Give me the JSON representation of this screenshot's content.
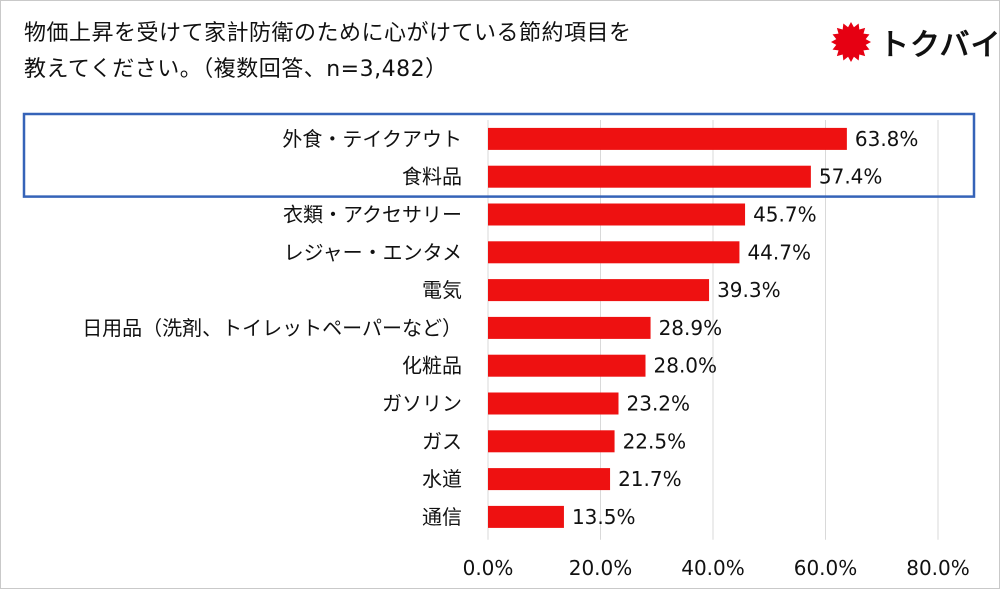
{
  "title": {
    "line1": "物価上昇を受けて家計防衛のために心がけている節約項目を",
    "line2": "教えてください。（複数回答、n=3,482）"
  },
  "logo": {
    "text": "トクバイ",
    "icon": "sun-burst-icon",
    "icon_color": "#e60012"
  },
  "highlight_color": "#3563b8",
  "bar_color": "#ee1111",
  "chart_data": {
    "type": "bar",
    "orientation": "horizontal",
    "title": "物価上昇を受けて家計防衛のために心がけている節約項目を教えてください。（複数回答、n=3,482）",
    "categories": [
      "外食・テイクアウト",
      "食料品",
      "衣類・アクセサリー",
      "レジャー・エンタメ",
      "電気",
      "日用品（洗剤、トイレットペーパーなど）",
      "化粧品",
      "ガソリン",
      "ガス",
      "水道",
      "通信"
    ],
    "values": [
      63.8,
      57.4,
      45.7,
      44.7,
      39.3,
      28.9,
      28.0,
      23.2,
      22.5,
      21.7,
      13.5
    ],
    "value_labels": [
      "63.8%",
      "57.4%",
      "45.7%",
      "44.7%",
      "39.3%",
      "28.9%",
      "28.0%",
      "23.2%",
      "22.5%",
      "21.7%",
      "13.5%"
    ],
    "xlim": [
      0,
      80
    ],
    "xticks": [
      0,
      20,
      40,
      60,
      80
    ],
    "xtick_labels": [
      "0.0%",
      "20.0%",
      "40.0%",
      "60.0%",
      "80.0%"
    ],
    "xlabel": "",
    "ylabel": "",
    "grid": true,
    "highlighted_categories": [
      "外食・テイクアウト",
      "食料品"
    ]
  }
}
